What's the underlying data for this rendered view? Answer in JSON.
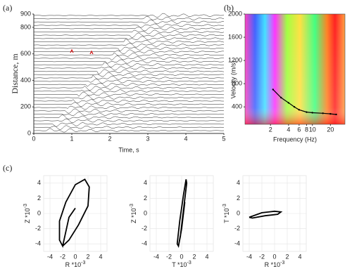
{
  "chart_data": [
    {
      "type": "wiggle",
      "panel_label": "(a)",
      "xlabel": "Time, s",
      "ylabel": "Distance, m",
      "xlim": [
        0,
        5
      ],
      "ylim": [
        0,
        900
      ],
      "xticks": [
        0,
        1,
        2,
        3,
        4,
        5
      ],
      "yticks": [
        0,
        200,
        400,
        600,
        800,
        900
      ]
    },
    {
      "type": "dispersion",
      "panel_label": "(b)",
      "xlabel": "Frequency (Hz)",
      "ylabel": "Velocity (m/s)",
      "log_x": true,
      "xlim": [
        0.75,
        35
      ],
      "ylim": [
        100,
        2000
      ],
      "xticks": [
        2,
        4,
        6,
        8,
        10,
        20
      ],
      "yticks": [
        400,
        800,
        1200,
        1600,
        2000
      ],
      "series": [
        {
          "color": "#000000",
          "x": [
            2.2,
            3,
            4,
            5,
            6,
            8,
            10,
            15,
            20,
            25
          ],
          "values": [
            700,
            560,
            470,
            400,
            350,
            310,
            300,
            290,
            280,
            270
          ]
        }
      ]
    },
    {
      "type": "hodogram",
      "panel_label": "(c)",
      "xlabel": "R *10",
      "xlabel_exp": "-3",
      "ylabel": "Z *10",
      "ylabel_exp": "-3",
      "xlim": [
        -5,
        5
      ],
      "ylim": [
        -5,
        5
      ],
      "xticks": [
        -4,
        -2,
        0,
        2,
        4
      ],
      "yticks": [
        -4,
        -2,
        0,
        2,
        4
      ],
      "grid": true,
      "series": [
        {
          "color": "#000000",
          "x": [
            0,
            -1,
            -2,
            -2.5,
            -2.5,
            -1.5,
            0,
            1.5,
            2.2,
            2,
            0.5,
            -1,
            -2
          ],
          "values": [
            0.7,
            -0.5,
            -4.3,
            -3.5,
            -1,
            1.5,
            3.8,
            4.5,
            3.5,
            1,
            -1.5,
            -3.5,
            -4.3
          ]
        }
      ]
    },
    {
      "type": "hodogram",
      "xlabel": "T *10",
      "xlabel_exp": "-3",
      "ylabel": "Z *10",
      "ylabel_exp": "-3",
      "xlim": [
        -5,
        5
      ],
      "ylim": [
        -5,
        5
      ],
      "xticks": [
        -4,
        -2,
        0,
        2,
        4
      ],
      "yticks": [
        -4,
        -2,
        0,
        2,
        4
      ],
      "grid": true,
      "series": [
        {
          "color": "#000000",
          "x": [
            0.5,
            0,
            -0.5,
            -0.7,
            -0.3,
            0.3,
            0.7,
            0.8,
            0.3,
            -0.2,
            -0.5
          ],
          "values": [
            1.5,
            -2,
            -4.3,
            -4,
            -1,
            2.5,
            4.5,
            4,
            0.5,
            -3,
            -4.3
          ]
        }
      ]
    },
    {
      "type": "hodogram",
      "xlabel": "R *10",
      "xlabel_exp": "-3",
      "ylabel": "T *10",
      "ylabel_exp": "-3",
      "xlim": [
        -5,
        5
      ],
      "ylim": [
        -5,
        5
      ],
      "xticks": [
        -4,
        -2,
        0,
        2,
        4
      ],
      "yticks": [
        -4,
        -2,
        0,
        2,
        4
      ],
      "grid": true,
      "series": [
        {
          "color": "#000000",
          "x": [
            -4,
            -2,
            0,
            1,
            0.5,
            -1.5,
            -3.5,
            -4
          ],
          "values": [
            -0.5,
            0.1,
            0.3,
            0.2,
            -0.1,
            -0.3,
            -0.6,
            -0.5
          ]
        }
      ]
    }
  ]
}
